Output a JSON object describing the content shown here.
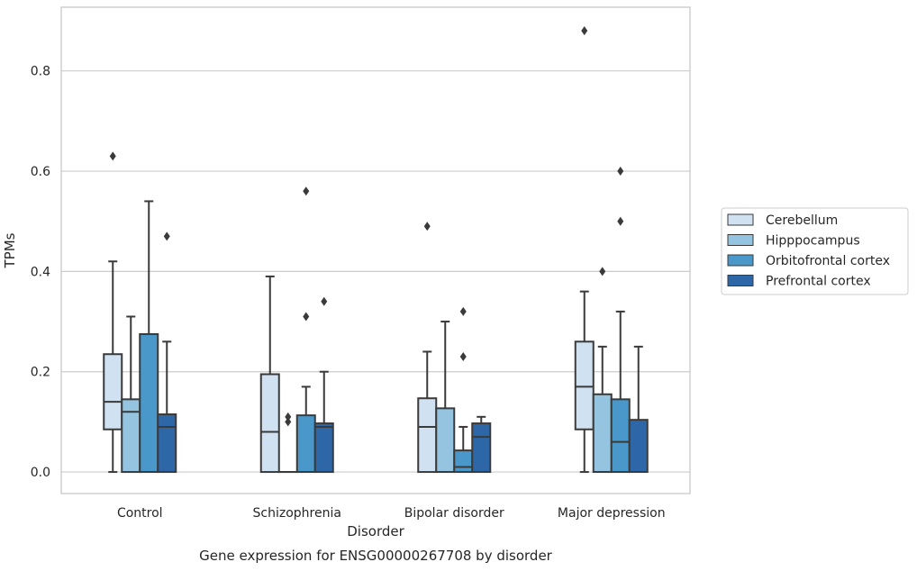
{
  "chart_data": {
    "type": "box",
    "title": "",
    "caption": "Gene expression for ENSG00000267708 by disorder",
    "xlabel": "Disorder",
    "ylabel": "TPMs",
    "ylim": [
      -0.043,
      0.927
    ],
    "yticks": [
      0.0,
      0.2,
      0.4,
      0.6,
      0.8
    ],
    "ytick_labels": [
      "0.0",
      "0.2",
      "0.4",
      "0.6",
      "0.8"
    ],
    "grid": "horizontal",
    "legend_position": "right",
    "categories": [
      "Control",
      "Schizophrenia",
      "Bipolar disorder",
      "Major depression"
    ],
    "series": [
      {
        "name": "Cerebellum",
        "color": "#d0e1f2",
        "boxes": [
          {
            "q1": 0.085,
            "median": 0.14,
            "q3": 0.235,
            "whisker_low": 0.0,
            "whisker_high": 0.42,
            "outliers": [
              0.63
            ]
          },
          {
            "q1": 0.0,
            "median": 0.08,
            "q3": 0.195,
            "whisker_low": 0.0,
            "whisker_high": 0.39,
            "outliers": []
          },
          {
            "q1": 0.0,
            "median": 0.09,
            "q3": 0.147,
            "whisker_low": 0.0,
            "whisker_high": 0.24,
            "outliers": [
              0.49
            ]
          },
          {
            "q1": 0.085,
            "median": 0.17,
            "q3": 0.26,
            "whisker_low": 0.0,
            "whisker_high": 0.36,
            "outliers": [
              0.88
            ]
          }
        ]
      },
      {
        "name": "Hipppocampus",
        "color": "#94c4df",
        "boxes": [
          {
            "q1": 0.0,
            "median": 0.12,
            "q3": 0.145,
            "whisker_low": 0.0,
            "whisker_high": 0.31,
            "outliers": []
          },
          {
            "q1": 0.0,
            "median": 0.0,
            "q3": 0.0,
            "whisker_low": 0.0,
            "whisker_high": 0.0,
            "outliers": [
              0.1,
              0.11
            ]
          },
          {
            "q1": 0.0,
            "median": 0.0,
            "q3": 0.127,
            "whisker_low": 0.0,
            "whisker_high": 0.3,
            "outliers": []
          },
          {
            "q1": 0.0,
            "median": 0.0,
            "q3": 0.155,
            "whisker_low": 0.0,
            "whisker_high": 0.25,
            "outliers": [
              0.4
            ]
          }
        ]
      },
      {
        "name": "Orbitofrontal cortex",
        "color": "#4a98c9",
        "boxes": [
          {
            "q1": 0.0,
            "median": 0.0,
            "q3": 0.275,
            "whisker_low": 0.0,
            "whisker_high": 0.54,
            "outliers": []
          },
          {
            "q1": 0.0,
            "median": 0.0,
            "q3": 0.113,
            "whisker_low": 0.0,
            "whisker_high": 0.17,
            "outliers": [
              0.31,
              0.56
            ]
          },
          {
            "q1": 0.0,
            "median": 0.01,
            "q3": 0.043,
            "whisker_low": 0.0,
            "whisker_high": 0.09,
            "outliers": [
              0.23,
              0.32
            ]
          },
          {
            "q1": 0.0,
            "median": 0.06,
            "q3": 0.145,
            "whisker_low": 0.0,
            "whisker_high": 0.32,
            "outliers": [
              0.5,
              0.6
            ]
          }
        ]
      },
      {
        "name": "Prefrontal cortex",
        "color": "#2e67a8",
        "boxes": [
          {
            "q1": 0.0,
            "median": 0.09,
            "q3": 0.115,
            "whisker_low": 0.0,
            "whisker_high": 0.26,
            "outliers": [
              0.47
            ]
          },
          {
            "q1": 0.0,
            "median": 0.09,
            "q3": 0.097,
            "whisker_low": 0.0,
            "whisker_high": 0.2,
            "outliers": [
              0.34
            ]
          },
          {
            "q1": 0.0,
            "median": 0.07,
            "q3": 0.097,
            "whisker_low": 0.0,
            "whisker_high": 0.11,
            "outliers": []
          },
          {
            "q1": 0.0,
            "median": 0.0,
            "q3": 0.104,
            "whisker_low": 0.0,
            "whisker_high": 0.25,
            "outliers": []
          }
        ]
      }
    ]
  }
}
